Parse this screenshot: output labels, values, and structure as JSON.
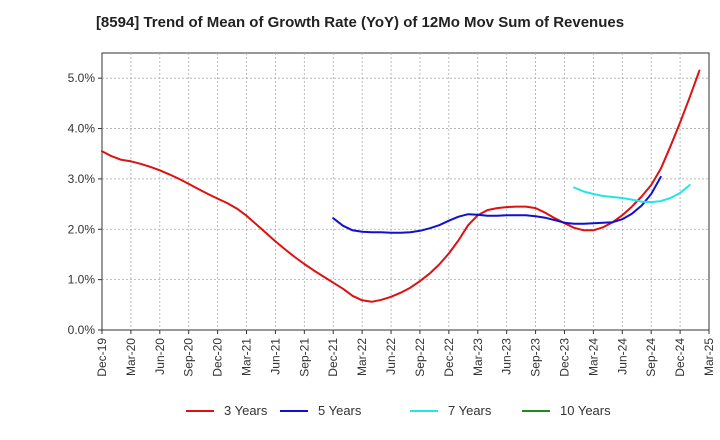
{
  "chart_data": {
    "type": "line",
    "title": "[8594]  Trend of Mean of Growth Rate (YoY) of 12Mo Mov Sum of Revenues",
    "xlabel": "",
    "ylabel": "",
    "ylim": [
      0,
      5.5
    ],
    "y_ticks": [
      0,
      1,
      2,
      3,
      4,
      5
    ],
    "y_tick_labels": [
      "0.0%",
      "1.0%",
      "2.0%",
      "3.0%",
      "4.0%",
      "5.0%"
    ],
    "x_tick_labels": [
      "Dec-19",
      "Mar-20",
      "Jun-20",
      "Sep-20",
      "Dec-20",
      "Mar-21",
      "Jun-21",
      "Sep-21",
      "Dec-21",
      "Mar-22",
      "Jun-22",
      "Sep-22",
      "Dec-22",
      "Mar-23",
      "Jun-23",
      "Sep-23",
      "Dec-23",
      "Mar-24",
      "Jun-24",
      "Sep-24",
      "Dec-24",
      "Mar-25"
    ],
    "grid": true,
    "legend_position": "bottom",
    "series": [
      {
        "name": "3 Years",
        "color": "#dd1111",
        "start_index": 0,
        "values": [
          3.55,
          3.45,
          3.38,
          3.35,
          3.3,
          3.24,
          3.17,
          3.09,
          3.0,
          2.9,
          2.8,
          2.7,
          2.61,
          2.52,
          2.41,
          2.27,
          2.1,
          1.93,
          1.76,
          1.6,
          1.45,
          1.31,
          1.18,
          1.06,
          0.94,
          0.82,
          0.68,
          0.59,
          0.56,
          0.6,
          0.66,
          0.74,
          0.84,
          0.97,
          1.12,
          1.3,
          1.52,
          1.78,
          2.08,
          2.28,
          2.38,
          2.42,
          2.44,
          2.45,
          2.45,
          2.42,
          2.33,
          2.22,
          2.12,
          2.03,
          1.98,
          1.98,
          2.04,
          2.14,
          2.28,
          2.45,
          2.65,
          2.88,
          3.2,
          3.65,
          4.12,
          4.62,
          5.15
        ]
      },
      {
        "name": "5 Years",
        "color": "#1111cc",
        "start_index": 24,
        "values": [
          2.22,
          2.07,
          1.98,
          1.95,
          1.94,
          1.94,
          1.93,
          1.93,
          1.94,
          1.97,
          2.02,
          2.08,
          2.17,
          2.25,
          2.3,
          2.29,
          2.27,
          2.27,
          2.28,
          2.28,
          2.28,
          2.26,
          2.23,
          2.18,
          2.13,
          2.11,
          2.11,
          2.12,
          2.13,
          2.14,
          2.2,
          2.31,
          2.47,
          2.7,
          3.04
        ]
      },
      {
        "name": "7 Years",
        "color": "#22e5e5",
        "start_index": 49,
        "values": [
          2.83,
          2.75,
          2.7,
          2.66,
          2.64,
          2.62,
          2.59,
          2.55,
          2.54,
          2.56,
          2.62,
          2.72,
          2.88
        ]
      },
      {
        "name": "10 Years",
        "color": "#1e8a1e",
        "start_index": 0,
        "values": []
      }
    ]
  }
}
